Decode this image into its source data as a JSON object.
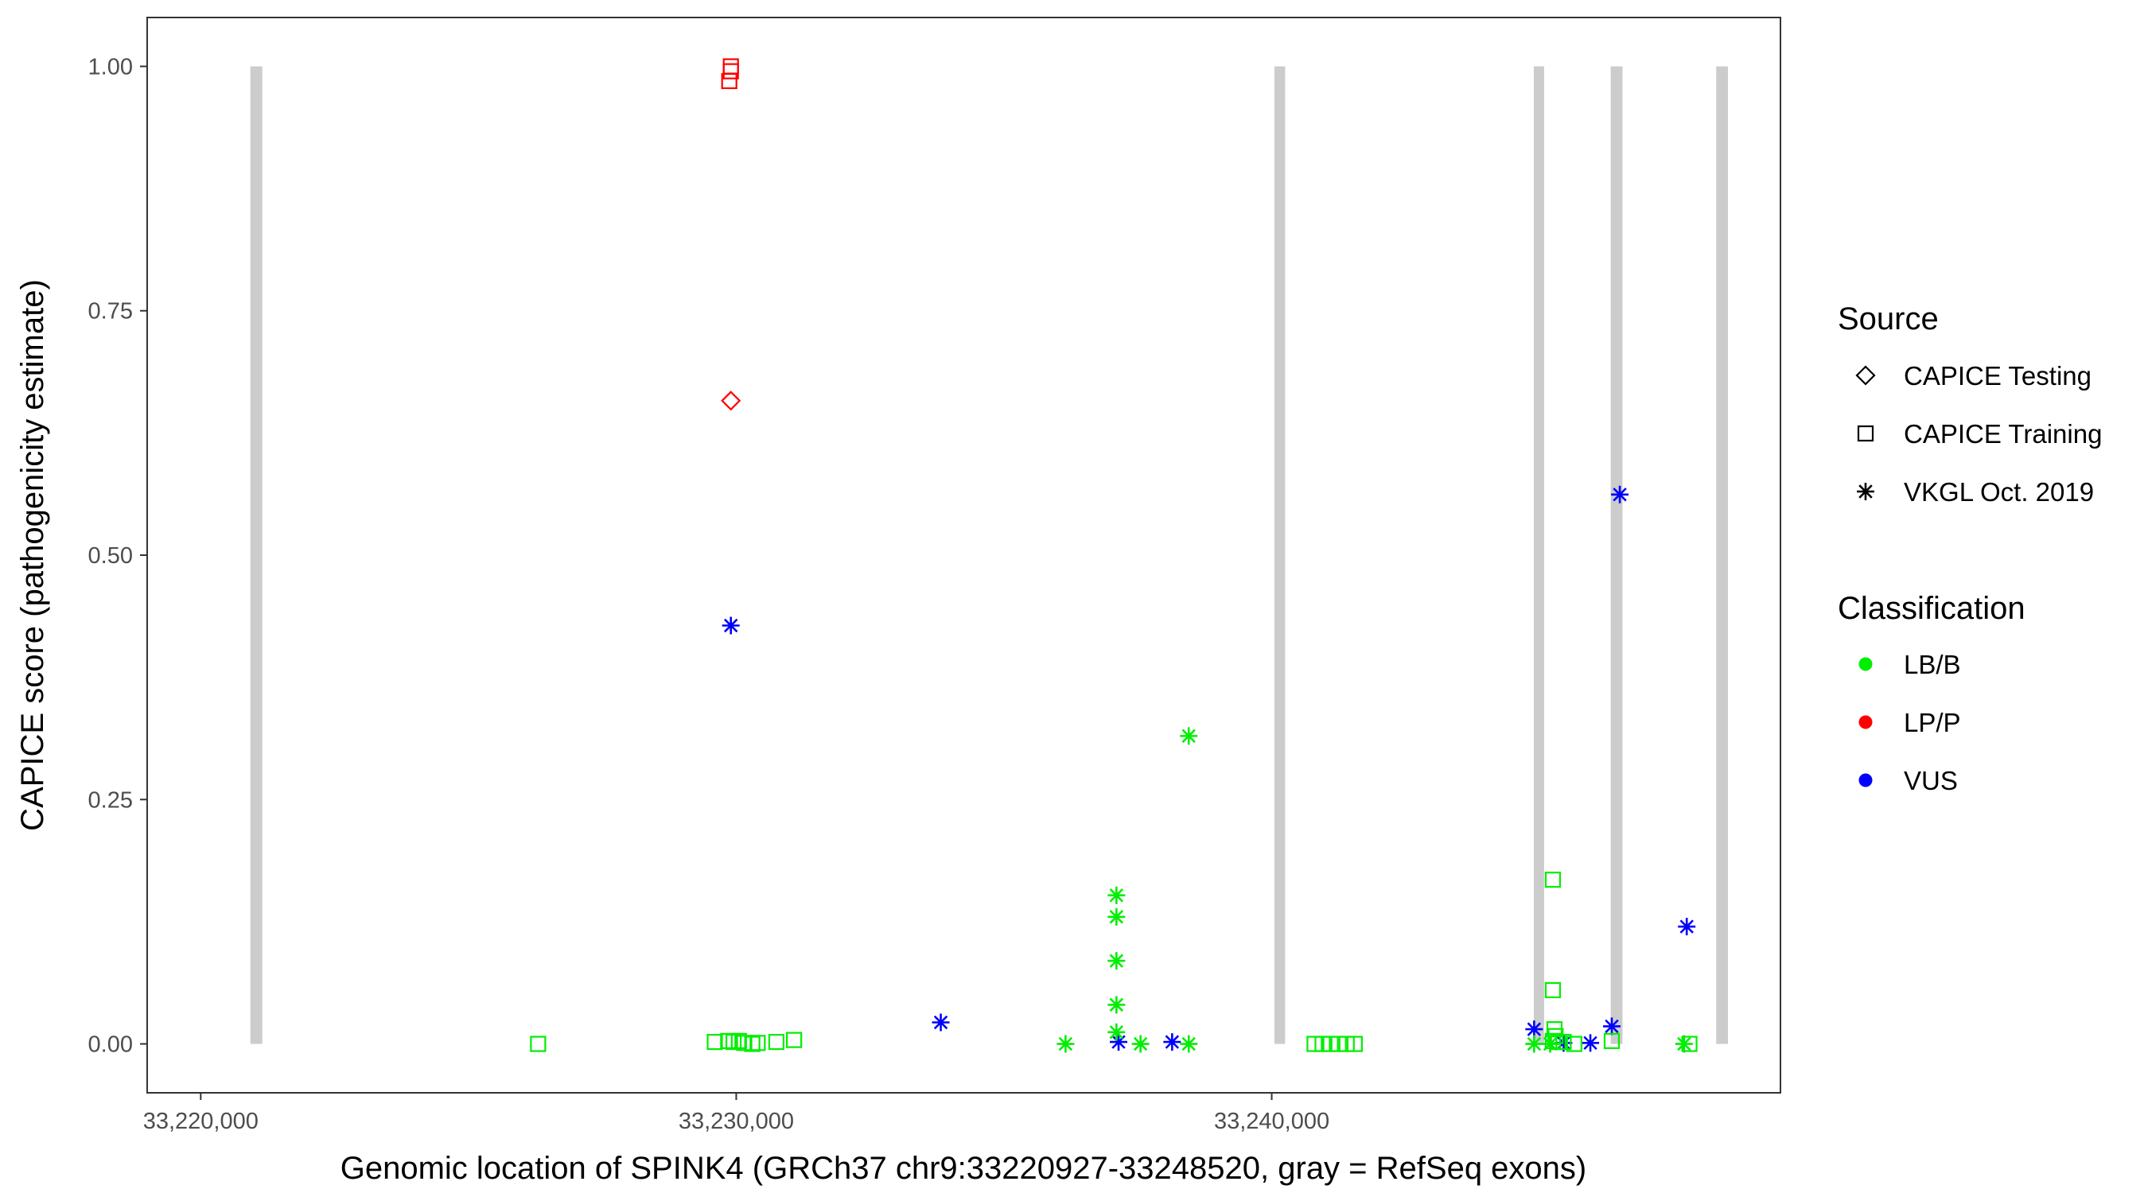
{
  "chart_data": {
    "type": "scatter",
    "title": "",
    "xlabel": "Genomic location of SPINK4 (GRCh37 chr9:33220927-33248520, gray = RefSeq exons)",
    "ylabel": "CAPICE score (pathogenicity estimate)",
    "xlim": [
      33219000,
      33249500
    ],
    "ylim": [
      -0.05,
      1.05
    ],
    "x_ticks": [
      33220000,
      33230000,
      33240000
    ],
    "x_tick_labels": [
      "33,220,000",
      "33,230,000",
      "33,240,000"
    ],
    "y_ticks": [
      0,
      0.25,
      0.5,
      0.75,
      1.0
    ],
    "y_tick_labels": [
      "0.00",
      "0.25",
      "0.50",
      "0.75",
      "1.00"
    ],
    "grid": false,
    "exons": [
      {
        "start": 33220927,
        "end": 33221150
      },
      {
        "start": 33240050,
        "end": 33240250
      },
      {
        "start": 33244900,
        "end": 33245080
      },
      {
        "start": 33246330,
        "end": 33246550
      },
      {
        "start": 33248300,
        "end": 33248520
      }
    ],
    "legend": {
      "position": "right",
      "source_title": "Source",
      "source_items": [
        {
          "label": "CAPICE Testing",
          "shape": "diamond"
        },
        {
          "label": "CAPICE Training",
          "shape": "square"
        },
        {
          "label": "VKGL Oct. 2019",
          "shape": "asterisk"
        }
      ],
      "class_title": "Classification",
      "class_items": [
        {
          "label": "LB/B",
          "color": "#00ee00"
        },
        {
          "label": "LP/P",
          "color": "#ff0000"
        },
        {
          "label": "VUS",
          "color": "#0000ff"
        }
      ]
    },
    "colors": {
      "LB/B": "#00ee00",
      "LP/P": "#ff0000",
      "VUS": "#0000ff",
      "exon": "#cccccc"
    },
    "points": [
      {
        "x": 33229900,
        "y": 1.0,
        "source": "CAPICE Training",
        "class": "LP/P"
      },
      {
        "x": 33229900,
        "y": 0.995,
        "source": "CAPICE Training",
        "class": "LP/P"
      },
      {
        "x": 33229870,
        "y": 0.985,
        "source": "CAPICE Training",
        "class": "LP/P"
      },
      {
        "x": 33229900,
        "y": 0.658,
        "source": "CAPICE Testing",
        "class": "LP/P"
      },
      {
        "x": 33229900,
        "y": 0.428,
        "source": "VKGL Oct. 2019",
        "class": "VUS"
      },
      {
        "x": 33233820,
        "y": 0.022,
        "source": "VKGL Oct. 2019",
        "class": "VUS"
      },
      {
        "x": 33237140,
        "y": 0.002,
        "source": "VKGL Oct. 2019",
        "class": "VUS"
      },
      {
        "x": 33238140,
        "y": 0.002,
        "source": "VKGL Oct. 2019",
        "class": "VUS"
      },
      {
        "x": 33244900,
        "y": 0.015,
        "source": "VKGL Oct. 2019",
        "class": "VUS"
      },
      {
        "x": 33245450,
        "y": 0.001,
        "source": "VKGL Oct. 2019",
        "class": "VUS"
      },
      {
        "x": 33245950,
        "y": 0.001,
        "source": "VKGL Oct. 2019",
        "class": "VUS"
      },
      {
        "x": 33246350,
        "y": 0.018,
        "source": "VKGL Oct. 2019",
        "class": "VUS"
      },
      {
        "x": 33246500,
        "y": 0.562,
        "source": "VKGL Oct. 2019",
        "class": "VUS"
      },
      {
        "x": 33247750,
        "y": 0.12,
        "source": "VKGL Oct. 2019",
        "class": "VUS"
      },
      {
        "x": 33238450,
        "y": 0.315,
        "source": "VKGL Oct. 2019",
        "class": "LB/B"
      },
      {
        "x": 33237100,
        "y": 0.152,
        "source": "VKGL Oct. 2019",
        "class": "LB/B"
      },
      {
        "x": 33237100,
        "y": 0.13,
        "source": "VKGL Oct. 2019",
        "class": "LB/B"
      },
      {
        "x": 33237100,
        "y": 0.085,
        "source": "VKGL Oct. 2019",
        "class": "LB/B"
      },
      {
        "x": 33237100,
        "y": 0.04,
        "source": "VKGL Oct. 2019",
        "class": "LB/B"
      },
      {
        "x": 33237100,
        "y": 0.012,
        "source": "VKGL Oct. 2019",
        "class": "LB/B"
      },
      {
        "x": 33236150,
        "y": 0.0,
        "source": "VKGL Oct. 2019",
        "class": "LB/B"
      },
      {
        "x": 33237550,
        "y": 0.0,
        "source": "VKGL Oct. 2019",
        "class": "LB/B"
      },
      {
        "x": 33238450,
        "y": 0.0,
        "source": "VKGL Oct. 2019",
        "class": "LB/B"
      },
      {
        "x": 33244900,
        "y": 0.0,
        "source": "VKGL Oct. 2019",
        "class": "LB/B"
      },
      {
        "x": 33245200,
        "y": 0.0,
        "source": "VKGL Oct. 2019",
        "class": "LB/B"
      },
      {
        "x": 33247700,
        "y": 0.0,
        "source": "VKGL Oct. 2019",
        "class": "LB/B"
      },
      {
        "x": 33226300,
        "y": 0.0,
        "source": "CAPICE Training",
        "class": "LB/B"
      },
      {
        "x": 33229600,
        "y": 0.002,
        "source": "CAPICE Training",
        "class": "LB/B"
      },
      {
        "x": 33229850,
        "y": 0.003,
        "source": "CAPICE Training",
        "class": "LB/B"
      },
      {
        "x": 33229950,
        "y": 0.002,
        "source": "CAPICE Training",
        "class": "LB/B"
      },
      {
        "x": 33230050,
        "y": 0.003,
        "source": "CAPICE Training",
        "class": "LB/B"
      },
      {
        "x": 33230150,
        "y": 0.001,
        "source": "CAPICE Training",
        "class": "LB/B"
      },
      {
        "x": 33230300,
        "y": 0.0,
        "source": "CAPICE Training",
        "class": "LB/B"
      },
      {
        "x": 33230400,
        "y": 0.001,
        "source": "CAPICE Training",
        "class": "LB/B"
      },
      {
        "x": 33230750,
        "y": 0.002,
        "source": "CAPICE Training",
        "class": "LB/B"
      },
      {
        "x": 33231080,
        "y": 0.004,
        "source": "CAPICE Training",
        "class": "LB/B"
      },
      {
        "x": 33240800,
        "y": 0.0,
        "source": "CAPICE Training",
        "class": "LB/B"
      },
      {
        "x": 33240950,
        "y": 0.0,
        "source": "CAPICE Training",
        "class": "LB/B"
      },
      {
        "x": 33241100,
        "y": 0.0,
        "source": "CAPICE Training",
        "class": "LB/B"
      },
      {
        "x": 33241250,
        "y": 0.0,
        "source": "CAPICE Training",
        "class": "LB/B"
      },
      {
        "x": 33241400,
        "y": 0.0,
        "source": "CAPICE Training",
        "class": "LB/B"
      },
      {
        "x": 33241550,
        "y": 0.0,
        "source": "CAPICE Training",
        "class": "LB/B"
      },
      {
        "x": 33245250,
        "y": 0.168,
        "source": "CAPICE Training",
        "class": "LB/B"
      },
      {
        "x": 33245250,
        "y": 0.055,
        "source": "CAPICE Training",
        "class": "LB/B"
      },
      {
        "x": 33245280,
        "y": 0.015,
        "source": "CAPICE Training",
        "class": "LB/B"
      },
      {
        "x": 33245300,
        "y": 0.008,
        "source": "CAPICE Training",
        "class": "LB/B"
      },
      {
        "x": 33245250,
        "y": 0.003,
        "source": "CAPICE Training",
        "class": "LB/B"
      },
      {
        "x": 33245350,
        "y": 0.002,
        "source": "CAPICE Training",
        "class": "LB/B"
      },
      {
        "x": 33245450,
        "y": 0.002,
        "source": "CAPICE Training",
        "class": "LB/B"
      },
      {
        "x": 33245650,
        "y": 0.0,
        "source": "CAPICE Training",
        "class": "LB/B"
      },
      {
        "x": 33246350,
        "y": 0.003,
        "source": "CAPICE Training",
        "class": "LB/B"
      },
      {
        "x": 33247800,
        "y": 0.0,
        "source": "CAPICE Training",
        "class": "LB/B"
      }
    ]
  }
}
